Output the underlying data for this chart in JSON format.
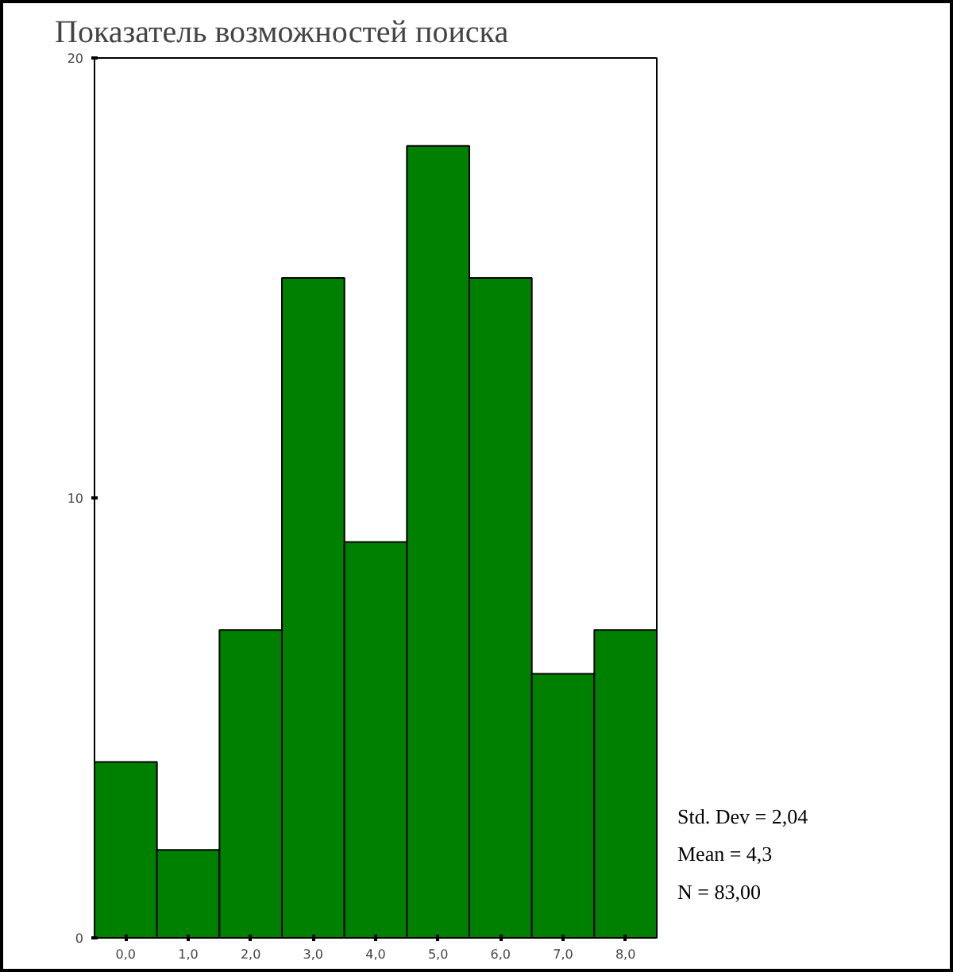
{
  "chart_data": {
    "type": "histogram",
    "title": "Показатель возможностей поиска",
    "bins": [
      -0.5,
      0.5,
      1.5,
      2.5,
      3.5,
      4.5,
      5.5,
      6.5,
      7.5,
      8.5
    ],
    "values": [
      4,
      2,
      7,
      15,
      9,
      18,
      15,
      6,
      7
    ],
    "color": "#008000",
    "xlim": [
      -0.5,
      8.5
    ],
    "xticks": [
      {
        "value": 0,
        "label": "0,0"
      },
      {
        "value": 1,
        "label": "1,0"
      },
      {
        "value": 2,
        "label": "2,0"
      },
      {
        "value": 3,
        "label": "3,0"
      },
      {
        "value": 4,
        "label": "4,0"
      },
      {
        "value": 5,
        "label": "5,0"
      },
      {
        "value": 6,
        "label": "6,0"
      },
      {
        "value": 7,
        "label": "7,0"
      },
      {
        "value": 8,
        "label": "8,0"
      }
    ],
    "ylim": [
      0,
      20
    ],
    "yticks": [
      0,
      10,
      20
    ],
    "annotations": [
      "Std. Dev = 2,04",
      "Mean = 4,3",
      "N = 83,00"
    ]
  }
}
